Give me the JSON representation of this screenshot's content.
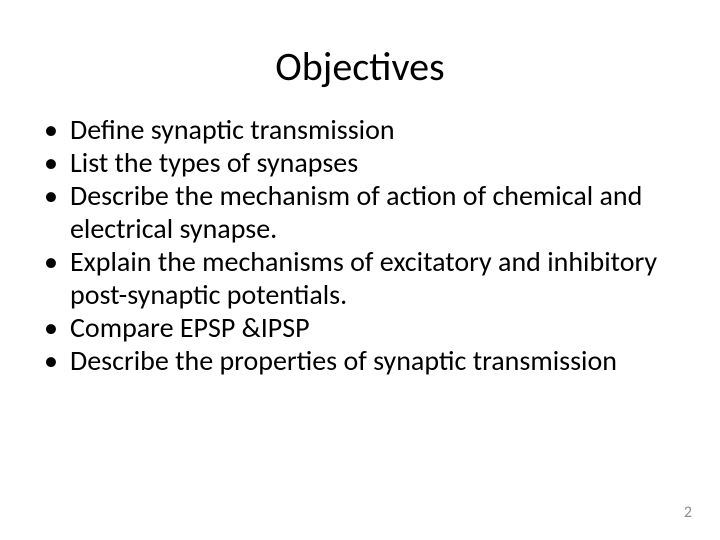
{
  "slide": {
    "title": "Objectives",
    "title_fontsize": 40,
    "title_color": "#000000",
    "bullet_fontsize": 28,
    "bullet_color": "#000000",
    "bullet_line_height": 1.18,
    "background_color": "#ffffff",
    "bullets": [
      "Define synaptic transmission",
      "List the types of synapses",
      "Describe the mechanism of action of chemical and electrical synapse.",
      "Explain  the mechanisms of excitatory and inhibitory post-synaptic potentials.",
      "Compare EPSP &IPSP",
      "Describe  the properties of synaptic transmission"
    ],
    "page_number": "2",
    "page_number_fontsize": 16,
    "page_number_color": "#8c8c8c"
  }
}
